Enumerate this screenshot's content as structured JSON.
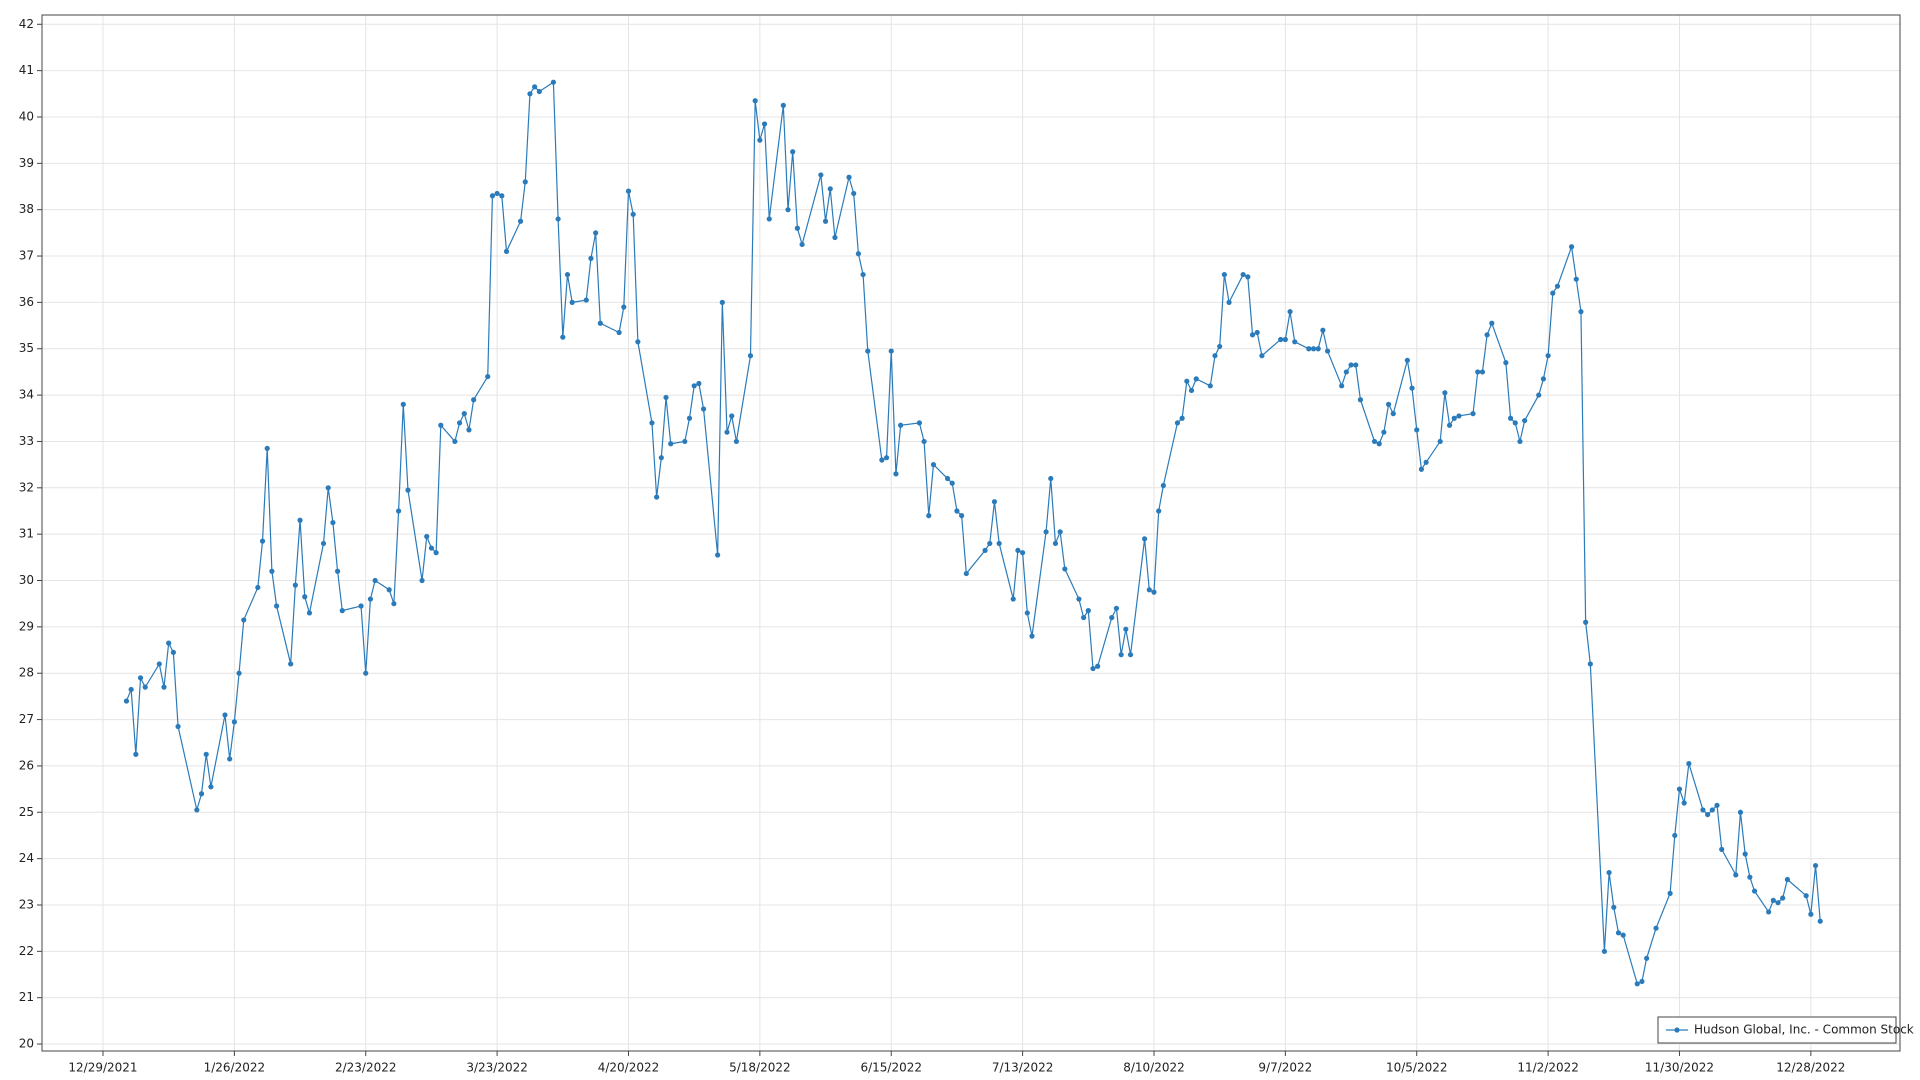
{
  "chart_data": {
    "type": "line",
    "x": [
      "1/3/2022",
      "1/4/2022",
      "1/5/2022",
      "1/6/2022",
      "1/7/2022",
      "1/10/2022",
      "1/11/2022",
      "1/12/2022",
      "1/13/2022",
      "1/14/2022",
      "1/18/2022",
      "1/19/2022",
      "1/20/2022",
      "1/21/2022",
      "1/24/2022",
      "1/25/2022",
      "1/26/2022",
      "1/27/2022",
      "1/28/2022",
      "1/31/2022",
      "2/1/2022",
      "2/2/2022",
      "2/3/2022",
      "2/4/2022",
      "2/7/2022",
      "2/8/2022",
      "2/9/2022",
      "2/10/2022",
      "2/11/2022",
      "2/14/2022",
      "2/15/2022",
      "2/16/2022",
      "2/17/2022",
      "2/18/2022",
      "2/22/2022",
      "2/23/2022",
      "2/24/2022",
      "2/25/2022",
      "2/28/2022",
      "3/1/2022",
      "3/2/2022",
      "3/3/2022",
      "3/4/2022",
      "3/7/2022",
      "3/8/2022",
      "3/9/2022",
      "3/10/2022",
      "3/11/2022",
      "3/14/2022",
      "3/15/2022",
      "3/16/2022",
      "3/17/2022",
      "3/18/2022",
      "3/21/2022",
      "3/22/2022",
      "3/23/2022",
      "3/24/2022",
      "3/25/2022",
      "3/28/2022",
      "3/29/2022",
      "3/30/2022",
      "3/31/2022",
      "4/1/2022",
      "4/4/2022",
      "4/5/2022",
      "4/6/2022",
      "4/7/2022",
      "4/8/2022",
      "4/11/2022",
      "4/12/2022",
      "4/13/2022",
      "4/14/2022",
      "4/18/2022",
      "4/19/2022",
      "4/20/2022",
      "4/21/2022",
      "4/22/2022",
      "4/25/2022",
      "4/26/2022",
      "4/27/2022",
      "4/28/2022",
      "4/29/2022",
      "5/2/2022",
      "5/3/2022",
      "5/4/2022",
      "5/5/2022",
      "5/6/2022",
      "5/9/2022",
      "5/10/2022",
      "5/11/2022",
      "5/12/2022",
      "5/13/2022",
      "5/16/2022",
      "5/17/2022",
      "5/18/2022",
      "5/19/2022",
      "5/20/2022",
      "5/23/2022",
      "5/24/2022",
      "5/25/2022",
      "5/26/2022",
      "5/27/2022",
      "5/31/2022",
      "6/1/2022",
      "6/2/2022",
      "6/3/2022",
      "6/6/2022",
      "6/7/2022",
      "6/8/2022",
      "6/9/2022",
      "6/10/2022",
      "6/13/2022",
      "6/14/2022",
      "6/15/2022",
      "6/16/2022",
      "6/17/2022",
      "6/21/2022",
      "6/22/2022",
      "6/23/2022",
      "6/24/2022",
      "6/27/2022",
      "6/28/2022",
      "6/29/2022",
      "6/30/2022",
      "7/1/2022",
      "7/5/2022",
      "7/6/2022",
      "7/7/2022",
      "7/8/2022",
      "7/11/2022",
      "7/12/2022",
      "7/13/2022",
      "7/14/2022",
      "7/15/2022",
      "7/18/2022",
      "7/19/2022",
      "7/20/2022",
      "7/21/2022",
      "7/22/2022",
      "7/25/2022",
      "7/26/2022",
      "7/27/2022",
      "7/28/2022",
      "7/29/2022",
      "8/1/2022",
      "8/2/2022",
      "8/3/2022",
      "8/4/2022",
      "8/5/2022",
      "8/8/2022",
      "8/9/2022",
      "8/10/2022",
      "8/11/2022",
      "8/12/2022",
      "8/15/2022",
      "8/16/2022",
      "8/17/2022",
      "8/18/2022",
      "8/19/2022",
      "8/22/2022",
      "8/23/2022",
      "8/24/2022",
      "8/25/2022",
      "8/26/2022",
      "8/29/2022",
      "8/30/2022",
      "8/31/2022",
      "9/1/2022",
      "9/2/2022",
      "9/6/2022",
      "9/7/2022",
      "9/8/2022",
      "9/9/2022",
      "9/12/2022",
      "9/13/2022",
      "9/14/2022",
      "9/15/2022",
      "9/16/2022",
      "9/19/2022",
      "9/20/2022",
      "9/21/2022",
      "9/22/2022",
      "9/23/2022",
      "9/26/2022",
      "9/27/2022",
      "9/28/2022",
      "9/29/2022",
      "9/30/2022",
      "10/3/2022",
      "10/4/2022",
      "10/5/2022",
      "10/6/2022",
      "10/7/2022",
      "10/10/2022",
      "10/11/2022",
      "10/12/2022",
      "10/13/2022",
      "10/14/2022",
      "10/17/2022",
      "10/18/2022",
      "10/19/2022",
      "10/20/2022",
      "10/21/2022",
      "10/24/2022",
      "10/25/2022",
      "10/26/2022",
      "10/27/2022",
      "10/28/2022",
      "10/31/2022",
      "11/1/2022",
      "11/2/2022",
      "11/3/2022",
      "11/4/2022",
      "11/7/2022",
      "11/8/2022",
      "11/9/2022",
      "11/10/2022",
      "11/11/2022",
      "11/14/2022",
      "11/15/2022",
      "11/16/2022",
      "11/17/2022",
      "11/18/2022",
      "11/21/2022",
      "11/22/2022",
      "11/23/2022",
      "11/25/2022",
      "11/28/2022",
      "11/29/2022",
      "11/30/2022",
      "12/1/2022",
      "12/2/2022",
      "12/5/2022",
      "12/6/2022",
      "12/7/2022",
      "12/8/2022",
      "12/9/2022",
      "12/12/2022",
      "12/13/2022",
      "12/14/2022",
      "12/15/2022",
      "12/16/2022",
      "12/19/2022",
      "12/20/2022",
      "12/21/2022",
      "12/22/2022",
      "12/23/2022",
      "12/27/2022",
      "12/28/2022",
      "12/29/2022",
      "12/30/2022"
    ],
    "series": [
      {
        "name": "Hudson Global, Inc. - Common Stock",
        "color": "#2b7bba",
        "values": [
          27.4,
          27.65,
          26.25,
          27.9,
          27.7,
          28.2,
          27.7,
          28.65,
          28.45,
          26.85,
          25.05,
          25.4,
          26.25,
          25.55,
          27.1,
          26.15,
          26.95,
          28.0,
          29.15,
          29.85,
          30.85,
          32.85,
          30.2,
          29.45,
          28.2,
          29.9,
          31.3,
          29.65,
          29.3,
          30.8,
          32.0,
          31.25,
          30.2,
          29.35,
          29.45,
          28.0,
          29.6,
          30.0,
          29.8,
          29.5,
          31.5,
          33.8,
          31.95,
          30.0,
          30.95,
          30.7,
          30.6,
          33.35,
          33.0,
          33.4,
          33.6,
          33.25,
          33.9,
          34.4,
          38.3,
          38.35,
          38.3,
          37.1,
          37.75,
          38.6,
          40.5,
          40.65,
          40.55,
          40.75,
          37.8,
          35.25,
          36.6,
          36.0,
          36.05,
          36.95,
          37.5,
          35.55,
          35.35,
          35.9,
          38.4,
          37.9,
          35.15,
          33.4,
          31.8,
          32.65,
          33.95,
          32.95,
          33.0,
          33.5,
          34.2,
          34.25,
          33.7,
          30.55,
          36.0,
          33.2,
          33.55,
          33.0,
          34.85,
          40.35,
          39.5,
          39.85,
          37.8,
          40.25,
          38.0,
          39.25,
          37.6,
          37.25,
          38.75,
          37.75,
          38.45,
          37.4,
          38.7,
          38.35,
          37.05,
          36.6,
          34.95,
          32.6,
          32.65,
          34.95,
          32.3,
          33.35,
          33.4,
          33.0,
          31.4,
          32.5,
          32.2,
          32.1,
          31.5,
          31.4,
          30.15,
          30.65,
          30.8,
          31.7,
          30.8,
          29.6,
          30.65,
          30.6,
          29.3,
          28.8,
          31.05,
          32.2,
          30.8,
          31.05,
          30.25,
          29.6,
          29.2,
          29.35,
          28.1,
          28.15,
          29.2,
          29.4,
          28.4,
          28.95,
          28.4,
          30.9,
          29.8,
          29.75,
          31.5,
          32.05,
          33.4,
          33.5,
          34.3,
          34.1,
          34.35,
          34.2,
          34.85,
          35.05,
          36.6,
          36.0,
          36.6,
          36.55,
          35.3,
          35.35,
          34.85,
          35.2,
          35.2,
          35.8,
          35.15,
          35.0,
          35.0,
          35.0,
          35.4,
          34.95,
          34.2,
          34.5,
          34.65,
          34.65,
          33.9,
          33.0,
          32.95,
          33.2,
          33.8,
          33.6,
          34.75,
          34.15,
          33.25,
          32.4,
          32.55,
          33.0,
          34.05,
          33.35,
          33.5,
          33.55,
          33.6,
          34.5,
          34.5,
          35.3,
          35.55,
          34.7,
          33.5,
          33.4,
          33.0,
          33.45,
          34.0,
          34.35,
          34.85,
          36.2,
          36.35,
          37.2,
          36.5,
          35.8,
          29.1,
          28.2,
          22.0,
          23.7,
          22.95,
          22.4,
          22.35,
          21.3,
          21.35,
          21.85,
          22.5,
          23.25,
          24.5,
          25.5,
          25.2,
          26.05,
          25.05,
          24.95,
          25.05,
          25.15,
          24.2,
          23.65,
          25.0,
          24.1,
          23.6,
          23.3,
          22.85,
          23.1,
          23.05,
          23.15,
          23.55,
          23.2,
          22.8,
          23.85,
          22.65
        ]
      }
    ],
    "xlim": [
      "12/16/2021",
      "1/16/2023"
    ],
    "xticks": [
      "12/29/2021",
      "1/26/2022",
      "2/23/2022",
      "3/23/2022",
      "4/20/2022",
      "5/18/2022",
      "6/15/2022",
      "7/13/2022",
      "8/10/2022",
      "9/7/2022",
      "10/5/2022",
      "11/2/2022",
      "11/30/2022",
      "12/28/2022"
    ],
    "ylim": [
      19.85,
      42.2
    ],
    "yticks": [
      20,
      21,
      22,
      23,
      24,
      25,
      26,
      27,
      28,
      29,
      30,
      31,
      32,
      33,
      34,
      35,
      36,
      37,
      38,
      39,
      40,
      41,
      42
    ],
    "grid": true,
    "legend": "lower right"
  }
}
